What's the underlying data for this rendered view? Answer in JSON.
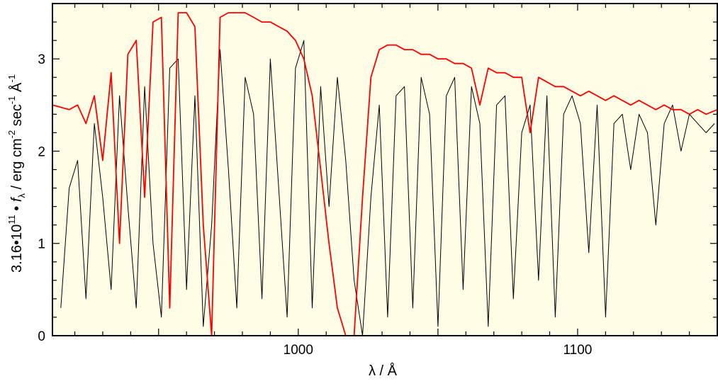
{
  "chart_data": {
    "type": "line",
    "xlabel": "λ / Å",
    "ylabel_parts": {
      "scale": "3.16•10",
      "scale_exp": "11",
      "bullet": " • ",
      "f": "f",
      "lambda_sub": "λ",
      "rest1": " / erg cm",
      "exp1": "-2",
      "rest2": " sec",
      "exp2": "-1",
      "rest3": " Å",
      "exp3": "-1"
    },
    "xlim": [
      912,
      1150
    ],
    "ylim": [
      0,
      3.6
    ],
    "x_ticks": [
      1000,
      1100
    ],
    "y_ticks": [
      0,
      1,
      2,
      3
    ],
    "x_tick_labels": [
      "1000",
      "1100"
    ],
    "y_tick_labels": [
      "0",
      "1",
      "2",
      "3"
    ],
    "background_color": "#FFFDE6",
    "series": [
      {
        "color": "#000000",
        "style": "dense absorption spectrum, approximate trace",
        "x": [
          915,
          918,
          921,
          924,
          927,
          930,
          933,
          936,
          939,
          942,
          945,
          948,
          951,
          954,
          957,
          960,
          963,
          966,
          969,
          972,
          975,
          978,
          981,
          984,
          987,
          990,
          993,
          996,
          999,
          1002,
          1005,
          1008,
          1011,
          1014,
          1017,
          1020,
          1023,
          1026,
          1029,
          1032,
          1035,
          1038,
          1041,
          1044,
          1047,
          1050,
          1053,
          1056,
          1059,
          1062,
          1065,
          1068,
          1071,
          1074,
          1077,
          1080,
          1083,
          1086,
          1089,
          1092,
          1095,
          1098,
          1101,
          1104,
          1107,
          1110,
          1113,
          1116,
          1119,
          1122,
          1125,
          1128,
          1131,
          1134,
          1137,
          1140,
          1143,
          1146,
          1149
        ],
        "y": [
          0.3,
          1.6,
          1.9,
          0.4,
          2.3,
          1.5,
          0.5,
          2.6,
          1.4,
          0.3,
          2.7,
          1.0,
          0.2,
          2.9,
          3.0,
          0.5,
          2.6,
          0.1,
          1.2,
          3.1,
          1.8,
          0.3,
          2.8,
          2.4,
          0.4,
          3.0,
          1.6,
          0.2,
          2.9,
          3.2,
          0.3,
          2.7,
          1.4,
          2.8,
          1.9,
          0.6,
          0.0,
          1.5,
          2.5,
          0.2,
          2.6,
          2.7,
          0.3,
          2.8,
          2.4,
          0.1,
          2.6,
          2.8,
          0.5,
          2.7,
          2.3,
          0.1,
          2.5,
          2.6,
          0.4,
          2.2,
          2.5,
          0.6,
          2.6,
          0.2,
          2.4,
          2.6,
          2.3,
          0.9,
          2.5,
          0.2,
          2.3,
          2.4,
          1.8,
          2.4,
          2.2,
          1.2,
          2.3,
          2.5,
          2.0,
          2.4,
          2.3,
          2.2,
          2.3
        ]
      },
      {
        "color": "#FF0000",
        "style": "model spectrum, approximate trace",
        "x": [
          912,
          918,
          921,
          924,
          927,
          930,
          933,
          936,
          939,
          942,
          945,
          948,
          951,
          954,
          957,
          960,
          963,
          966,
          969,
          972,
          975,
          978,
          981,
          984,
          987,
          990,
          993,
          996,
          999,
          1002,
          1005,
          1008,
          1011,
          1014,
          1017,
          1020,
          1023,
          1026,
          1029,
          1032,
          1035,
          1038,
          1041,
          1044,
          1047,
          1050,
          1053,
          1056,
          1059,
          1062,
          1065,
          1068,
          1071,
          1074,
          1077,
          1080,
          1083,
          1086,
          1089,
          1092,
          1095,
          1098,
          1101,
          1104,
          1107,
          1110,
          1113,
          1116,
          1119,
          1122,
          1125,
          1128,
          1131,
          1134,
          1137,
          1140,
          1143,
          1146,
          1150
        ],
        "y": [
          2.5,
          2.45,
          2.5,
          2.3,
          2.6,
          1.9,
          2.85,
          1.0,
          3.05,
          3.2,
          1.5,
          3.4,
          3.45,
          0.3,
          3.5,
          3.5,
          3.35,
          1.2,
          0.0,
          3.45,
          3.5,
          3.5,
          3.5,
          3.45,
          3.4,
          3.4,
          3.35,
          3.3,
          3.2,
          3.0,
          2.6,
          1.8,
          1.0,
          0.3,
          0.0,
          0.0,
          1.5,
          2.8,
          3.1,
          3.15,
          3.15,
          3.1,
          3.1,
          3.05,
          3.05,
          3.0,
          3.0,
          2.95,
          2.95,
          2.9,
          2.5,
          2.9,
          2.85,
          2.85,
          2.8,
          2.8,
          2.2,
          2.8,
          2.75,
          2.7,
          2.7,
          2.65,
          2.6,
          2.65,
          2.6,
          2.55,
          2.6,
          2.55,
          2.5,
          2.55,
          2.5,
          2.45,
          2.5,
          2.45,
          2.45,
          2.4,
          2.45,
          2.4,
          2.45
        ]
      }
    ]
  }
}
